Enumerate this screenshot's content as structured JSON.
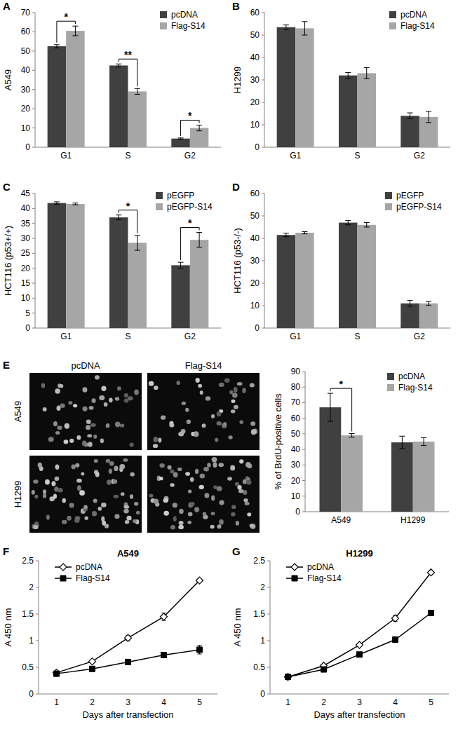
{
  "chart_data": [
    {
      "type": "bar",
      "title": "A",
      "y_label": "A549",
      "categories": [
        "G1",
        "S",
        "G2"
      ],
      "series": [
        {
          "name": "pcDNA",
          "color": "#404040",
          "values": [
            52.5,
            42.5,
            4.5
          ],
          "errors": [
            0.8,
            0.8,
            0.3
          ]
        },
        {
          "name": "Flag-S14",
          "color": "#a6a6a6",
          "values": [
            60.5,
            29,
            10
          ],
          "errors": [
            2.5,
            1.5,
            1.5
          ]
        }
      ],
      "annotations": [
        "*",
        "**",
        "*"
      ],
      "ylim": [
        0,
        70
      ],
      "yticks": [
        0,
        10,
        20,
        30,
        40,
        50,
        60,
        70
      ],
      "grid": false,
      "legend": "upper-right"
    },
    {
      "type": "bar",
      "title": "B",
      "y_label": "H1299",
      "categories": [
        "G1",
        "S",
        "G2"
      ],
      "series": [
        {
          "name": "pcDNA",
          "color": "#404040",
          "values": [
            53.5,
            32,
            14
          ],
          "errors": [
            1,
            1.3,
            1.3
          ]
        },
        {
          "name": "Flag-S14",
          "color": "#a6a6a6",
          "values": [
            53,
            33,
            13.5
          ],
          "errors": [
            3,
            2.5,
            2.5
          ]
        }
      ],
      "ylim": [
        0,
        60
      ],
      "yticks": [
        0,
        10,
        20,
        30,
        40,
        50,
        60
      ],
      "grid": false,
      "legend": "upper-right"
    },
    {
      "type": "bar",
      "title": "C",
      "y_label": "HCT116 (p53+/+)",
      "categories": [
        "G1",
        "S",
        "G2"
      ],
      "series": [
        {
          "name": "pEGFP",
          "color": "#404040",
          "values": [
            41.8,
            37,
            21
          ],
          "errors": [
            0.4,
            0.8,
            1
          ]
        },
        {
          "name": "pEGFP-S14",
          "color": "#a6a6a6",
          "values": [
            41.5,
            28.5,
            29.5
          ],
          "errors": [
            0.3,
            2.5,
            2.5
          ]
        }
      ],
      "annotations": [
        null,
        "*",
        "*"
      ],
      "ylim": [
        0,
        45
      ],
      "yticks": [
        0,
        5,
        10,
        15,
        20,
        25,
        30,
        35,
        40,
        45
      ],
      "grid": false,
      "legend": "upper-right"
    },
    {
      "type": "bar",
      "title": "D",
      "y_label": "HCT116 (p53-/-)",
      "categories": [
        "G1",
        "S",
        "G2"
      ],
      "series": [
        {
          "name": "pEGFP",
          "color": "#404040",
          "values": [
            41.5,
            47,
            11
          ],
          "errors": [
            0.8,
            1,
            1.3
          ]
        },
        {
          "name": "pEGFP-S14",
          "color": "#a6a6a6",
          "values": [
            42.5,
            46,
            11
          ],
          "errors": [
            0.5,
            1,
            0.8
          ]
        }
      ],
      "ylim": [
        0,
        60
      ],
      "yticks": [
        0,
        10,
        20,
        30,
        40,
        50,
        60
      ],
      "grid": false,
      "legend": "upper-right"
    },
    {
      "type": "bar",
      "y_label": "% of BrdU-positive cells",
      "categories": [
        "A549",
        "H1299"
      ],
      "series": [
        {
          "name": "pcDNA",
          "color": "#404040",
          "values": [
            67,
            44.5
          ],
          "errors": [
            9,
            4
          ]
        },
        {
          "name": "Flag-S14",
          "color": "#a6a6a6",
          "values": [
            49,
            45
          ],
          "errors": [
            1.2,
            2.5
          ]
        }
      ],
      "annotations": [
        "*",
        null
      ],
      "ylim": [
        0,
        90
      ],
      "yticks": [
        0,
        10,
        20,
        30,
        40,
        50,
        60,
        70,
        80,
        90
      ],
      "grid": false,
      "legend": "upper-right"
    },
    {
      "type": "line",
      "title": "F",
      "subtitle": "A549",
      "x_label": "Days after transfection",
      "y_label": "A 450 nm",
      "categories": [
        1,
        2,
        3,
        4,
        5
      ],
      "series": [
        {
          "name": "pcDNA",
          "color": "#000000",
          "marker": "open-diamond",
          "values": [
            0.4,
            0.61,
            1.05,
            1.45,
            2.13
          ],
          "errors": [
            0.02,
            0.02,
            0.05,
            0.07,
            0.02
          ]
        },
        {
          "name": "Flag-S14",
          "color": "#000000",
          "marker": "square",
          "values": [
            0.38,
            0.47,
            0.6,
            0.73,
            0.83
          ],
          "errors": [
            0.02,
            0.02,
            0.05,
            0.03,
            0.08
          ]
        }
      ],
      "ylim": [
        0,
        2.5
      ],
      "yticks": [
        0,
        0.5,
        1,
        1.5,
        2,
        2.5
      ],
      "grid": false,
      "legend": "upper-left"
    },
    {
      "type": "line",
      "title": "G",
      "subtitle": "H1299",
      "x_label": "Days after transfection",
      "y_label": "A 450 nm",
      "categories": [
        1,
        2,
        3,
        4,
        5
      ],
      "series": [
        {
          "name": "pcDNA",
          "color": "#000000",
          "marker": "open-diamond",
          "values": [
            0.32,
            0.53,
            0.92,
            1.42,
            2.28
          ],
          "errors": [
            0.01,
            0.02,
            0.02,
            0.06,
            0.02
          ]
        },
        {
          "name": "Flag-S14",
          "color": "#000000",
          "marker": "square",
          "values": [
            0.32,
            0.46,
            0.74,
            1.02,
            1.52
          ],
          "errors": [
            0.01,
            0.01,
            0.02,
            0.02,
            0.05
          ]
        }
      ],
      "ylim": [
        0,
        2.5
      ],
      "yticks": [
        0,
        0.5,
        1,
        1.5,
        2,
        2.5
      ],
      "grid": false,
      "legend": "upper-left"
    }
  ],
  "micrographs": {
    "title": "E",
    "columns": [
      "pcDNA",
      "Flag-S14"
    ],
    "rows": [
      "A549",
      "H1299"
    ]
  }
}
